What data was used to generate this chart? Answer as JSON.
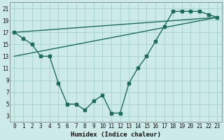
{
  "xlabel": "Humidex (Indice chaleur)",
  "bg_color": "#cceae8",
  "grid_color": "#aad4d0",
  "line_color": "#1e6b5e",
  "curve_x": [
    0,
    1,
    2,
    3,
    4,
    5,
    6,
    7,
    8,
    9,
    10,
    11,
    12,
    13,
    14,
    15,
    16,
    17,
    18,
    19,
    20,
    21,
    22,
    23
  ],
  "curve_y": [
    17,
    16,
    15,
    13,
    13,
    8.5,
    5,
    5,
    4,
    5.5,
    6.5,
    3.5,
    3.5,
    8.5,
    11,
    13,
    15.5,
    18,
    20.5,
    20.5,
    20.5,
    20.5,
    20,
    19.5
  ],
  "upper_line_x": [
    0,
    23
  ],
  "upper_line_y": [
    17,
    19.5
  ],
  "lower_line_x": [
    0,
    23
  ],
  "lower_line_y": [
    13,
    19.5
  ],
  "xlim": [
    -0.5,
    23.5
  ],
  "ylim": [
    2,
    22
  ],
  "yticks": [
    3,
    5,
    7,
    9,
    11,
    13,
    15,
    17,
    19,
    21
  ],
  "xticks": [
    0,
    1,
    2,
    3,
    4,
    5,
    6,
    7,
    8,
    9,
    10,
    11,
    12,
    13,
    14,
    15,
    16,
    17,
    18,
    19,
    20,
    21,
    22,
    23
  ]
}
